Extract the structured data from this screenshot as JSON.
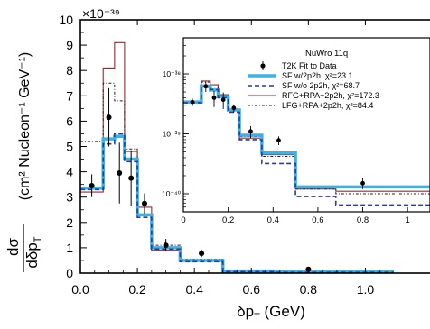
{
  "chart_data": [
    {
      "type": "step",
      "panel": "main",
      "title": "",
      "xlabel": {
        "main": "δp",
        "sub": "T",
        "unit": " (GeV)"
      },
      "ylabel": {
        "frac_num": "dσ",
        "frac_den": "dδp",
        "frac_den_sub": "T",
        "unit": "(cm² Nucleon⁻¹ GeV⁻¹)"
      },
      "multiplier_label": "×10⁻³⁹",
      "xlim": [
        0.0,
        1.1
      ],
      "ylim": [
        0,
        10
      ],
      "xticks": [
        0.0,
        0.2,
        0.4,
        0.6,
        0.8,
        1.0
      ],
      "xtick_labels": [
        "0.0",
        "0.2",
        "0.4",
        "0.6",
        "0.8",
        "1.0"
      ],
      "yticks": [
        0,
        1,
        2,
        3,
        4,
        5,
        6,
        7,
        8,
        9,
        10
      ],
      "ytick_labels": [
        "0",
        "1",
        "2",
        "3",
        "4",
        "5",
        "6",
        "7",
        "8",
        "9",
        "10"
      ],
      "bin_edges": [
        0.0,
        0.08,
        0.12,
        0.155,
        0.2,
        0.25,
        0.35,
        0.5,
        0.68,
        1.1
      ],
      "series": [
        {
          "name": "T2K Fit to Data",
          "kind": "points",
          "color": "#000000",
          "x": [
            0.04,
            0.1,
            0.137,
            0.178,
            0.225,
            0.3,
            0.425,
            0.8
          ],
          "y": [
            3.45,
            6.15,
            3.95,
            3.75,
            2.75,
            1.1,
            0.78,
            0.15
          ],
          "yerr": [
            0.45,
            1.15,
            1.2,
            1.1,
            0.4,
            0.25,
            0.15,
            0.08
          ]
        },
        {
          "name": "SF w/2p2h",
          "kind": "step",
          "color": "#39b3e6",
          "width": 3.5,
          "dash": "",
          "values": [
            3.35,
            5.3,
            5.4,
            4.5,
            2.3,
            1.0,
            0.5,
            0.08,
            0.05
          ]
        },
        {
          "name": "SF w/o 2p2h",
          "kind": "step",
          "color": "#2a3a9e",
          "width": 1.6,
          "dash": "5,3",
          "values": [
            3.3,
            5.1,
            5.5,
            4.4,
            2.2,
            0.95,
            0.45,
            0.06,
            0.03
          ]
        },
        {
          "name": "RFG+RPA+2p2h",
          "kind": "step",
          "color": "#a3242f",
          "width": 1.1,
          "dash": "",
          "values": [
            3.2,
            8.1,
            9.1,
            4.8,
            2.6,
            0.9,
            0.5,
            0.1,
            0.05
          ]
        },
        {
          "name": "LFG+RPA+2p2h",
          "kind": "step",
          "color": "#222222",
          "width": 1.0,
          "dash": "3,2,1,2",
          "values": [
            5.2,
            7.5,
            6.8,
            4.9,
            2.3,
            1.1,
            0.55,
            0.12,
            0.05
          ]
        }
      ]
    },
    {
      "type": "step",
      "panel": "inset",
      "yscale": "log",
      "title": "NuWro 11q",
      "xlim": [
        0.0,
        1.1
      ],
      "ylim": [
        5e-41,
        4e-38
      ],
      "xticks": [
        0.0,
        0.2,
        0.4,
        0.6,
        0.8,
        1.0
      ],
      "xtick_labels": [
        "0",
        "0.2",
        "0.4",
        "0.6",
        "0.8",
        "1"
      ],
      "yticks": [
        1e-40,
        1e-39,
        1e-38
      ],
      "ytick_labels": [
        "10⁻⁴⁰",
        "10⁻³⁹",
        "10⁻³⁸"
      ],
      "bin_edges": [
        0.0,
        0.08,
        0.12,
        0.155,
        0.2,
        0.25,
        0.35,
        0.5,
        0.68,
        1.1
      ],
      "legend": [
        {
          "label": "T2K Fit to Data",
          "kind": "point",
          "color": "#000000",
          "width": 1,
          "dash": ""
        },
        {
          "label": "SF w/2p2h, χ²=23.1",
          "kind": "line",
          "color": "#39b3e6",
          "width": 3.5,
          "dash": ""
        },
        {
          "label": "SF w/o 2p2h, χ²=68.7",
          "kind": "line",
          "color": "#2a3a9e",
          "width": 1.6,
          "dash": "5,3"
        },
        {
          "label": "RFG+RPA+2p2h, χ²=172.3",
          "kind": "line",
          "color": "#a3242f",
          "width": 1.1,
          "dash": ""
        },
        {
          "label": "LFG+RPA+2p2h, χ²=84.4",
          "kind": "line",
          "color": "#222222",
          "width": 1.0,
          "dash": "3,2,1,2"
        }
      ],
      "series": [
        {
          "name": "T2K Fit to Data",
          "kind": "points",
          "color": "#000000",
          "x": [
            0.04,
            0.1,
            0.137,
            0.178,
            0.225,
            0.3,
            0.425,
            0.8
          ],
          "y": [
            3.4e-39,
            6.2e-39,
            4e-39,
            3.7e-39,
            2.7e-39,
            1.1e-39,
            7.8e-40,
            1.5e-40
          ],
          "ylo": [
            2.9e-39,
            5e-39,
            2.8e-39,
            2.6e-39,
            2.3e-39,
            8.5e-40,
            6.5e-40,
            1.2e-40
          ],
          "yhi": [
            3.9e-39,
            7.4e-39,
            5.2e-39,
            4.9e-39,
            3.1e-39,
            1.35e-39,
            9.1e-40,
            1.8e-40
          ]
        },
        {
          "name": "SF w/2p2h",
          "kind": "step",
          "color": "#39b3e6",
          "width": 3.5,
          "dash": "",
          "values": [
            3.4e-39,
            6.3e-39,
            5.4e-39,
            4.2e-39,
            2.5e-39,
            9.5e-40,
            4.8e-40,
            1.3e-40,
            1.3e-40
          ]
        },
        {
          "name": "SF w/o 2p2h",
          "kind": "step",
          "color": "#2a3a9e",
          "width": 1.6,
          "dash": "5,3",
          "values": [
            3.3e-39,
            6e-39,
            5.5e-39,
            4e-39,
            2.3e-39,
            8e-40,
            3.2e-40,
            9e-41,
            6.5e-41
          ]
        },
        {
          "name": "RFG+RPA+2p2h",
          "kind": "step",
          "color": "#a3242f",
          "width": 1.1,
          "dash": "",
          "values": [
            3.3e-39,
            7.6e-39,
            6.6e-39,
            4.5e-39,
            2.6e-39,
            8.5e-40,
            4.5e-40,
            1.2e-40,
            1.1e-40
          ]
        },
        {
          "name": "LFG+RPA+2p2h",
          "kind": "step",
          "color": "#222222",
          "width": 1.0,
          "dash": "3,2,1,2",
          "values": [
            3.5e-39,
            7.3e-39,
            6e-39,
            4.4e-39,
            2.5e-39,
            9e-40,
            4.2e-40,
            1.2e-40,
            1e-40
          ]
        }
      ]
    }
  ]
}
